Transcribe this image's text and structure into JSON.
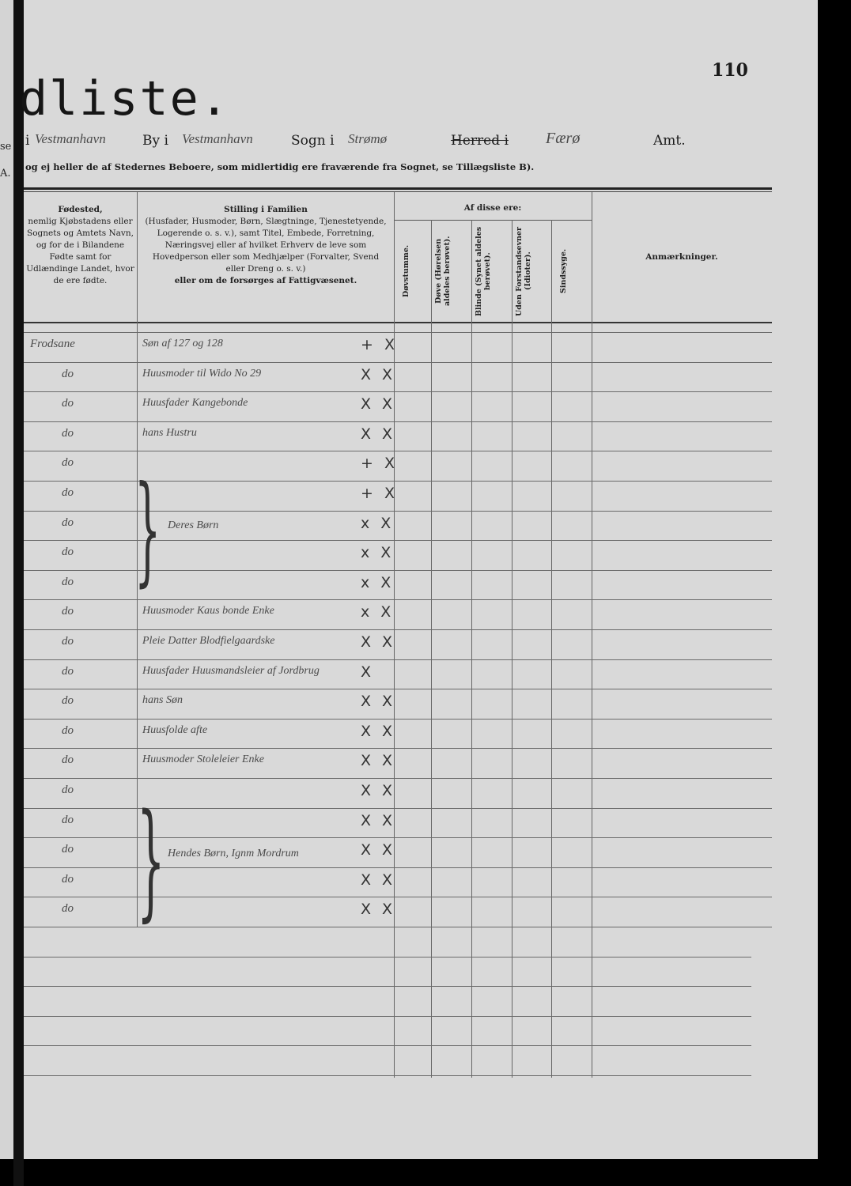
{
  "left_page_fragments": [
    "se",
    "A."
  ],
  "header": {
    "title": "dliste.",
    "page_number": "110",
    "town_value": "Vestmanhavn",
    "town_label": "By i",
    "parish_value": "Vestmanhavn",
    "parish_label": "Sogn i",
    "herred_value": "Strømø",
    "herred_label": "Herred i",
    "amt_value": "Færø",
    "amt_label": "Amt.",
    "prefix": "i",
    "subtitle": "og ej heller de af Stedernes Beboere, som midlertidig ere fraværende fra Sognet, se Tillægsliste B)."
  },
  "columns": {
    "birthplace": {
      "title": "Fødested,",
      "text": "nemlig Kjøbstadens eller Sognets og Amtets Navn, og for de i Bilandene Fødte samt for Udlændinge Landet, hvor de ere fødte."
    },
    "position": {
      "title": "Stilling i Familien",
      "text1": "(Husfader, Husmoder, Børn, Slægtninge, Tjenestetyende, Logerende o. s. v.),",
      "text2": "samt Titel, Embede, Forretning, Næringsvej eller af hvilket Erhverv de leve som Hovedperson eller som Medhjælper (Forvalter, Svend eller Dreng o. s. v.)",
      "text3": "eller om de forsørges af Fattigvæsenet."
    },
    "group_title": "Af disse ere:",
    "sub": [
      "Døvstumme.",
      "Døve (Hørelsen aldeles berøvet).",
      "Blinde (Synet aldeles berøvet).",
      "Uden Forstandsevner (Idioter).",
      "Sindssyge."
    ],
    "remarks": "Anmærkninger."
  },
  "rows": [
    {
      "birthplace": "Frodsane",
      "position": "Søn af 127 og 128",
      "marks": "+ X"
    },
    {
      "birthplace": "do",
      "position": "Huusmoder til Wido No 29",
      "marks": "X X"
    },
    {
      "birthplace": "do",
      "position": "Huusfader Kangebonde",
      "marks": "X X"
    },
    {
      "birthplace": "do",
      "position": "hans Hustru",
      "marks": "X X"
    },
    {
      "birthplace": "do",
      "position": "",
      "marks": "+ X"
    },
    {
      "birthplace": "do",
      "position": "",
      "marks": "+ X"
    },
    {
      "birthplace": "do",
      "position": "",
      "marks": "x X"
    },
    {
      "birthplace": "do",
      "position": "",
      "marks": "x X"
    },
    {
      "birthplace": "do",
      "position": "",
      "marks": "x X"
    },
    {
      "birthplace": "do",
      "position": "Huusmoder Kaus bonde Enke",
      "marks": "x X"
    },
    {
      "birthplace": "do",
      "position": "Pleie Datter Blodfielgaardske",
      "marks": "X X"
    },
    {
      "birthplace": "do",
      "position": "Huusfader Huusmandsleier af Jordbrug",
      "marks": "X"
    },
    {
      "birthplace": "do",
      "position": "hans Søn",
      "marks": "X X"
    },
    {
      "birthplace": "do",
      "position": "Huusfolde afte",
      "marks": "X X"
    },
    {
      "birthplace": "do",
      "position": "Huusmoder Stoleleier Enke",
      "marks": "X X"
    },
    {
      "birthplace": "do",
      "position": "",
      "marks": "X X"
    },
    {
      "birthplace": "do",
      "position": "",
      "marks": "X X"
    },
    {
      "birthplace": "do",
      "position": "",
      "marks": "X X"
    },
    {
      "birthplace": "do",
      "position": "",
      "marks": "X X"
    },
    {
      "birthplace": "do",
      "position": "",
      "marks": "X X"
    }
  ],
  "groups": [
    {
      "label": "Deres Børn"
    },
    {
      "label": "Hendes Børn, Ignm Mordrum"
    }
  ]
}
